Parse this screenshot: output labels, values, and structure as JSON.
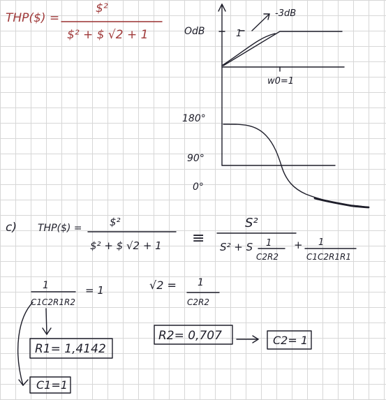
{
  "top_transfer": {
    "lhs": "THP($) =",
    "numerator": "$²",
    "denominator": "$² + $ √2 + 1"
  },
  "graph": {
    "y_odb": "OdB",
    "one_label": "1",
    "minus3db": "-3dB",
    "w0_label": "w0=1",
    "phase_180": "180°",
    "phase_90": "90°",
    "phase_0": "0°"
  },
  "part_c": {
    "label": "c)",
    "lhs": "THP($) =",
    "num1": "$²",
    "den1": "$² + $ √2 + 1",
    "equiv": "≡",
    "num2": "S²",
    "den2_left": "S² + S",
    "frac1_num": "1",
    "frac1_den": "C2R2",
    "plus": "+",
    "frac2_num": "1",
    "frac2_den": "C1C2R1R1"
  },
  "bottom": {
    "eq1_num": "1",
    "eq1_den": "C1C2R1R2",
    "eq1_rhs": "= 1",
    "eq2_lhs": "√2 =",
    "eq2_num": "1",
    "eq2_den": "C2R2",
    "box_r1": "R1= 1,4142",
    "box_r2": "R2= 0,707",
    "box_c2": "C2= 1",
    "box_c1": "C1=1"
  }
}
